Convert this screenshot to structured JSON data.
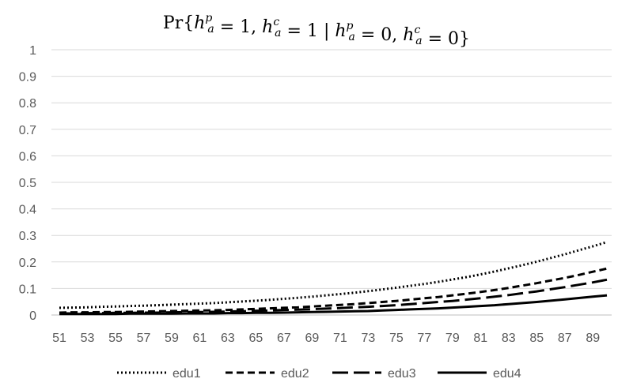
{
  "chart_data": {
    "type": "line",
    "title": {
      "parts": [
        "Pr{",
        "h",
        "p",
        "a",
        " = 1, ",
        "h",
        "c",
        "a",
        " = 1 | ",
        "h",
        "p",
        "a",
        " = 0, ",
        "h",
        "c",
        "a",
        " = 0}"
      ]
    },
    "xlabel": "",
    "ylabel": "",
    "x": [
      51,
      52,
      53,
      54,
      55,
      56,
      57,
      58,
      59,
      60,
      61,
      62,
      63,
      64,
      65,
      66,
      67,
      68,
      69,
      70,
      71,
      72,
      73,
      74,
      75,
      76,
      77,
      78,
      79,
      80,
      81,
      82,
      83,
      84,
      85,
      86,
      87,
      88,
      89,
      90
    ],
    "x_tick_labels": [
      "51",
      "53",
      "55",
      "57",
      "59",
      "61",
      "63",
      "65",
      "67",
      "69",
      "71",
      "73",
      "75",
      "77",
      "79",
      "81",
      "83",
      "85",
      "87",
      "89"
    ],
    "y_tick_labels": [
      "0",
      "0.1",
      "0.2",
      "0.3",
      "0.4",
      "0.5",
      "0.6",
      "0.7",
      "0.8",
      "0.9",
      "1"
    ],
    "ylim": [
      0,
      1
    ],
    "grid": true,
    "legend_position": "bottom",
    "series": [
      {
        "name": "edu1",
        "style": "dotted",
        "values": [
          0.027,
          0.028,
          0.029,
          0.031,
          0.032,
          0.034,
          0.035,
          0.037,
          0.039,
          0.041,
          0.043,
          0.045,
          0.048,
          0.051,
          0.054,
          0.057,
          0.061,
          0.065,
          0.069,
          0.074,
          0.079,
          0.084,
          0.09,
          0.096,
          0.103,
          0.11,
          0.117,
          0.125,
          0.134,
          0.143,
          0.153,
          0.164,
          0.176,
          0.188,
          0.201,
          0.215,
          0.229,
          0.244,
          0.259,
          0.275
        ]
      },
      {
        "name": "edu2",
        "style": "dashed",
        "values": [
          0.009,
          0.01,
          0.01,
          0.011,
          0.011,
          0.012,
          0.013,
          0.014,
          0.015,
          0.016,
          0.017,
          0.018,
          0.019,
          0.021,
          0.023,
          0.025,
          0.027,
          0.029,
          0.032,
          0.035,
          0.038,
          0.041,
          0.045,
          0.049,
          0.053,
          0.058,
          0.063,
          0.068,
          0.074,
          0.08,
          0.087,
          0.094,
          0.102,
          0.111,
          0.12,
          0.13,
          0.14,
          0.151,
          0.163,
          0.175
        ]
      },
      {
        "name": "edu3",
        "style": "longdash",
        "values": [
          0.006,
          0.006,
          0.007,
          0.007,
          0.008,
          0.008,
          0.009,
          0.009,
          0.01,
          0.011,
          0.011,
          0.012,
          0.013,
          0.014,
          0.016,
          0.017,
          0.019,
          0.02,
          0.022,
          0.024,
          0.026,
          0.029,
          0.031,
          0.034,
          0.037,
          0.041,
          0.045,
          0.049,
          0.053,
          0.058,
          0.063,
          0.069,
          0.075,
          0.082,
          0.089,
          0.097,
          0.105,
          0.114,
          0.123,
          0.133
        ]
      },
      {
        "name": "edu4",
        "style": "solid",
        "values": [
          0.004,
          0.004,
          0.004,
          0.004,
          0.004,
          0.005,
          0.005,
          0.005,
          0.005,
          0.006,
          0.006,
          0.006,
          0.007,
          0.007,
          0.008,
          0.008,
          0.009,
          0.01,
          0.011,
          0.012,
          0.013,
          0.014,
          0.015,
          0.017,
          0.019,
          0.021,
          0.023,
          0.025,
          0.028,
          0.031,
          0.034,
          0.037,
          0.041,
          0.045,
          0.049,
          0.054,
          0.059,
          0.064,
          0.069,
          0.074
        ]
      }
    ]
  }
}
